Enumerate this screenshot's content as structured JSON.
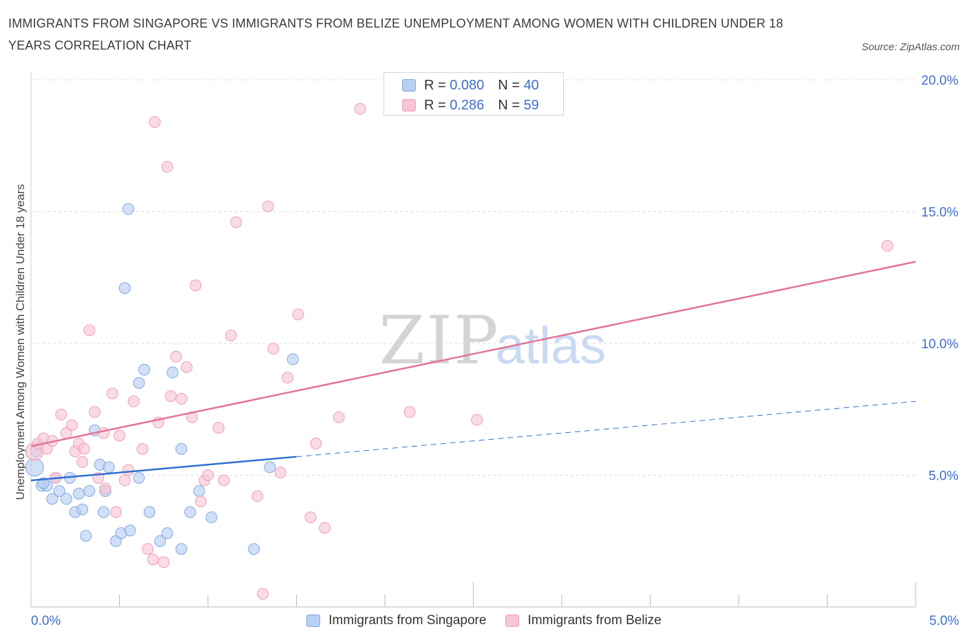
{
  "header": {
    "title": "IMMIGRANTS FROM SINGAPORE VS IMMIGRANTS FROM BELIZE UNEMPLOYMENT AMONG WOMEN WITH CHILDREN UNDER 18 YEARS CORRELATION CHART",
    "source": "Source: ZipAtlas.com"
  },
  "legend_top": {
    "rows": [
      {
        "r_label": "R =",
        "r_value": "0.080",
        "n_label": "N =",
        "n_value": "40"
      },
      {
        "r_label": "R =",
        "r_value": "0.286",
        "n_label": "N =",
        "n_value": "59"
      }
    ]
  },
  "legend_bottom": {
    "items": [
      "Immigrants from Singapore",
      "Immigrants from Belize"
    ]
  },
  "watermark": {
    "zip": "ZIP",
    "atlas": "atlas"
  },
  "colors": {
    "singapore_fill": "#b8d0f3",
    "singapore_stroke": "#7fa7e3",
    "singapore_line": "#2f6fd0",
    "belize_fill": "#f8c6d6",
    "belize_stroke": "#eea0b8",
    "belize_line": "#e2729a",
    "axis_text": "#3d6ec9",
    "grid": "#dddddd"
  },
  "chart_data": {
    "type": "scatter",
    "title": "IMMIGRANTS FROM SINGAPORE VS IMMIGRANTS FROM BELIZE UNEMPLOYMENT AMONG WOMEN WITH CHILDREN UNDER 18 YEARS CORRELATION CHART",
    "xlabel": "",
    "ylabel": "Unemployment Among Women with Children Under 18 years",
    "xlim": [
      0,
      5
    ],
    "ylim": [
      0,
      20
    ],
    "x_tick_labels": [
      "0.0%",
      "5.0%"
    ],
    "y_ticks": [
      5,
      10,
      15,
      20
    ],
    "y_tick_labels": [
      "5.0%",
      "10.0%",
      "15.0%",
      "20.0%"
    ],
    "grid": true,
    "legend_position": "top-center",
    "series": [
      {
        "name": "Immigrants from Singapore",
        "R": 0.08,
        "N": 40,
        "trend": {
          "x0": 0.0,
          "y0": 4.8,
          "x1": 1.5,
          "y1": 5.7,
          "dash_to_x": 5.0,
          "dash_to_y": 7.8
        },
        "points": [
          [
            0.02,
            5.3
          ],
          [
            0.06,
            4.6
          ],
          [
            0.09,
            4.6
          ],
          [
            0.12,
            4.1
          ],
          [
            0.14,
            4.9
          ],
          [
            0.16,
            4.4
          ],
          [
            0.2,
            4.1
          ],
          [
            0.22,
            4.9
          ],
          [
            0.25,
            3.6
          ],
          [
            0.27,
            4.3
          ],
          [
            0.29,
            3.7
          ],
          [
            0.31,
            2.7
          ],
          [
            0.33,
            4.4
          ],
          [
            0.36,
            6.7
          ],
          [
            0.39,
            5.4
          ],
          [
            0.41,
            3.6
          ],
          [
            0.42,
            4.4
          ],
          [
            0.44,
            5.3
          ],
          [
            0.48,
            2.5
          ],
          [
            0.51,
            2.8
          ],
          [
            0.53,
            12.1
          ],
          [
            0.55,
            15.1
          ],
          [
            0.56,
            2.9
          ],
          [
            0.61,
            8.5
          ],
          [
            0.61,
            4.9
          ],
          [
            0.64,
            9.0
          ],
          [
            0.67,
            3.6
          ],
          [
            0.73,
            2.5
          ],
          [
            0.77,
            2.8
          ],
          [
            0.8,
            8.9
          ],
          [
            0.85,
            2.2
          ],
          [
            0.85,
            6.0
          ],
          [
            0.9,
            3.6
          ],
          [
            0.95,
            4.4
          ],
          [
            1.02,
            3.4
          ],
          [
            1.26,
            2.2
          ],
          [
            1.35,
            5.3
          ],
          [
            1.48,
            9.4
          ],
          [
            0.03,
            5.9
          ],
          [
            0.07,
            4.7
          ]
        ]
      },
      {
        "name": "Immigrants from Belize",
        "R": 0.286,
        "N": 59,
        "trend": {
          "x0": 0.0,
          "y0": 6.1,
          "x1": 5.0,
          "y1": 13.1
        },
        "points": [
          [
            0.02,
            5.9
          ],
          [
            0.04,
            6.2
          ],
          [
            0.07,
            6.4
          ],
          [
            0.09,
            6.0
          ],
          [
            0.12,
            6.3
          ],
          [
            0.14,
            4.9
          ],
          [
            0.17,
            7.3
          ],
          [
            0.2,
            6.6
          ],
          [
            0.23,
            6.9
          ],
          [
            0.25,
            5.9
          ],
          [
            0.27,
            6.2
          ],
          [
            0.29,
            5.5
          ],
          [
            0.3,
            6.0
          ],
          [
            0.33,
            10.5
          ],
          [
            0.36,
            7.4
          ],
          [
            0.38,
            4.9
          ],
          [
            0.41,
            6.6
          ],
          [
            0.42,
            4.5
          ],
          [
            0.46,
            8.1
          ],
          [
            0.48,
            3.6
          ],
          [
            0.5,
            6.5
          ],
          [
            0.53,
            4.8
          ],
          [
            0.55,
            5.2
          ],
          [
            0.58,
            7.8
          ],
          [
            0.63,
            6.0
          ],
          [
            0.66,
            2.2
          ],
          [
            0.69,
            1.8
          ],
          [
            0.7,
            18.4
          ],
          [
            0.72,
            7.0
          ],
          [
            0.75,
            1.7
          ],
          [
            0.77,
            16.7
          ],
          [
            0.79,
            8.0
          ],
          [
            0.82,
            9.5
          ],
          [
            0.85,
            7.9
          ],
          [
            0.88,
            9.1
          ],
          [
            0.91,
            7.2
          ],
          [
            0.93,
            12.2
          ],
          [
            0.96,
            4.0
          ],
          [
            0.98,
            4.8
          ],
          [
            1.0,
            5.0
          ],
          [
            1.06,
            6.8
          ],
          [
            1.09,
            4.8
          ],
          [
            1.13,
            10.3
          ],
          [
            1.16,
            14.6
          ],
          [
            1.28,
            4.2
          ],
          [
            1.31,
            0.5
          ],
          [
            1.34,
            15.2
          ],
          [
            1.37,
            9.8
          ],
          [
            1.41,
            5.1
          ],
          [
            1.45,
            8.7
          ],
          [
            1.51,
            11.1
          ],
          [
            1.58,
            3.4
          ],
          [
            1.61,
            6.2
          ],
          [
            1.66,
            3.0
          ],
          [
            1.74,
            7.2
          ],
          [
            1.86,
            18.9
          ],
          [
            2.14,
            7.4
          ],
          [
            2.52,
            7.1
          ],
          [
            4.84,
            13.7
          ]
        ]
      }
    ]
  }
}
